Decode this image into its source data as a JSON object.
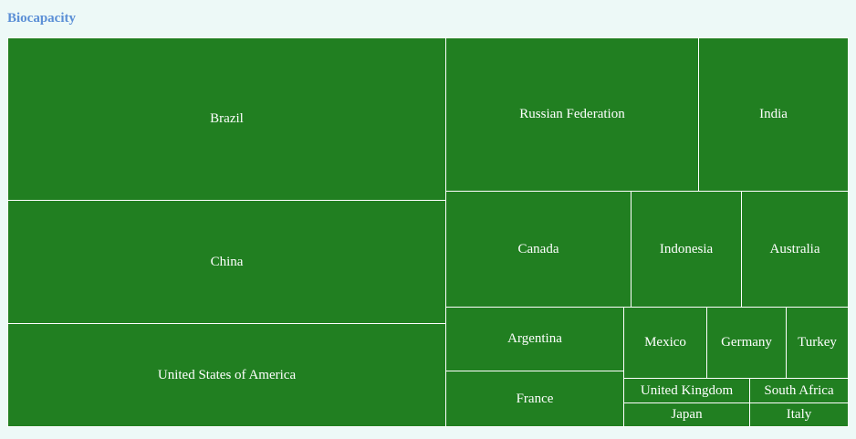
{
  "chart_data": {
    "type": "treemap",
    "title": "Biocapacity",
    "colors": {
      "tile": "#217f21",
      "border": "#ffffff",
      "title": "#5b8fd6",
      "background": "#edf9f7"
    },
    "items": [
      {
        "name": "Brazil"
      },
      {
        "name": "China"
      },
      {
        "name": "United States of America"
      },
      {
        "name": "Russian Federation"
      },
      {
        "name": "India"
      },
      {
        "name": "Canada"
      },
      {
        "name": "Indonesia"
      },
      {
        "name": "Australia"
      },
      {
        "name": "Argentina"
      },
      {
        "name": "France"
      },
      {
        "name": "Mexico"
      },
      {
        "name": "Germany"
      },
      {
        "name": "Turkey"
      },
      {
        "name": "United Kingdom"
      },
      {
        "name": "Japan"
      },
      {
        "name": "South Africa"
      },
      {
        "name": "Italy"
      }
    ]
  }
}
